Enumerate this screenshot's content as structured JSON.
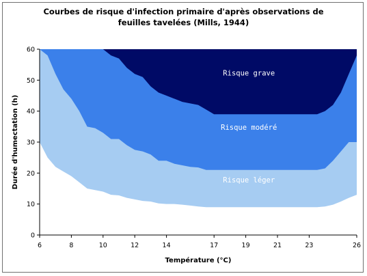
{
  "chart_data": {
    "type": "area",
    "title": "Courbes de risque d'infection primaire d'après observations de feuilles tavelées (Mills, 1944)",
    "xlabel": "Température (°C)",
    "ylabel": "Durée d'humectation (h)",
    "xlim": [
      6,
      26
    ],
    "ylim": [
      0,
      60
    ],
    "x_ticks": [
      6,
      8,
      10,
      12,
      14,
      17,
      19,
      21,
      23,
      26
    ],
    "y_ticks": [
      0,
      10,
      20,
      30,
      40,
      50,
      60
    ],
    "grid": false,
    "legend": "none",
    "series": [
      {
        "name": "Risque léger",
        "color": "#a6ccf2",
        "label_pos": [
          19.2,
          17
        ],
        "x": [
          6,
          6.5,
          7,
          7.5,
          8,
          8.5,
          9,
          9.5,
          10,
          10.5,
          11,
          11.5,
          12,
          12.5,
          13,
          13.5,
          14,
          14.5,
          15,
          15.5,
          16,
          16.5,
          17,
          17.5,
          18,
          18.5,
          19,
          19.5,
          20,
          20.5,
          21,
          21.5,
          22,
          22.5,
          23,
          23.5,
          24,
          24.5,
          25,
          25.5,
          26
        ],
        "values": [
          30,
          25,
          22,
          20.5,
          19,
          17,
          15,
          14.5,
          14,
          13,
          12.8,
          12,
          11.5,
          11,
          10.8,
          10.2,
          10,
          10,
          9.8,
          9.5,
          9.2,
          9,
          9,
          9,
          9,
          9,
          9,
          9,
          9,
          9,
          9,
          9,
          9,
          9,
          9,
          9,
          9.2,
          9.8,
          10.8,
          12,
          13
        ]
      },
      {
        "name": "Risque modéré",
        "color": "#3b80ea",
        "label_pos": [
          19.2,
          34
        ],
        "x": [
          6,
          6.5,
          7,
          7.5,
          8,
          8.5,
          9,
          9.5,
          10,
          10.5,
          11,
          11.5,
          12,
          12.5,
          13,
          13.5,
          14,
          14.5,
          15,
          15.5,
          16,
          16.5,
          17,
          17.5,
          18,
          18.5,
          19,
          19.5,
          20,
          20.5,
          21,
          21.5,
          22,
          22.5,
          23,
          23.5,
          24,
          24.5,
          25,
          25.5,
          26
        ],
        "values": [
          60,
          58,
          52,
          47,
          44,
          40,
          35,
          34.5,
          33,
          31,
          31,
          29,
          27.5,
          27,
          26,
          24,
          24,
          23,
          22.5,
          22,
          21.8,
          21,
          21,
          21,
          21,
          21,
          21,
          21,
          21,
          21,
          21,
          21,
          21,
          21,
          21,
          21,
          21.5,
          24,
          27,
          30,
          30
        ]
      },
      {
        "name": "Risque grave",
        "color": "#000a66",
        "label_pos": [
          19.2,
          51.5
        ],
        "x": [
          6,
          6.5,
          7,
          7.5,
          8,
          8.5,
          9,
          9.5,
          10,
          10.5,
          11,
          11.5,
          12,
          12.5,
          13,
          13.5,
          14,
          14.5,
          15,
          15.5,
          16,
          16.5,
          17,
          17.5,
          18,
          18.5,
          19,
          19.5,
          20,
          20.5,
          21,
          21.5,
          22,
          22.5,
          23,
          23.5,
          24,
          24.5,
          25,
          25.5,
          26
        ],
        "values": [
          60,
          60,
          60,
          60,
          60,
          60,
          60,
          60,
          60,
          58,
          57,
          54,
          52,
          51,
          48,
          46,
          45,
          44,
          43,
          42.5,
          42,
          40.5,
          39,
          39,
          39,
          39,
          39,
          39,
          39,
          39,
          39,
          39,
          39,
          39,
          39,
          39,
          40,
          42,
          46,
          52,
          58
        ]
      }
    ],
    "outer_color": "#ffffff"
  }
}
